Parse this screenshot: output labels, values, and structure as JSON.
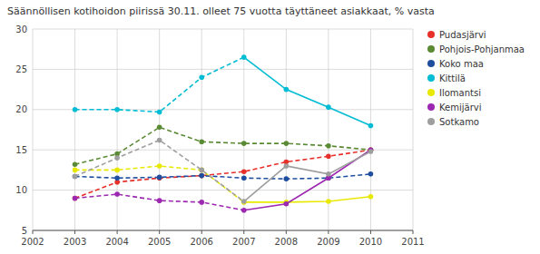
{
  "chart_data": {
    "type": "line",
    "title": "Säännöllisen kotihoidon piirissä 30.11. olleet 75 vuotta täyttäneet asiakkaat, % vasta",
    "x": [
      2003,
      2004,
      2005,
      2006,
      2007,
      2008,
      2009,
      2010
    ],
    "series": [
      {
        "name": "Pudasjärvi",
        "color": "#e8302a",
        "line_style": "dashed",
        "marker": "circle",
        "values": [
          9.0,
          11.0,
          11.5,
          11.8,
          12.3,
          13.5,
          14.2,
          15.0
        ]
      },
      {
        "name": "Pohjois-Pohjanmaa",
        "color": "#5a8a34",
        "line_style": "dashed",
        "marker": "circle",
        "values": [
          13.2,
          14.5,
          17.8,
          16.0,
          15.8,
          15.8,
          15.5,
          15.0
        ]
      },
      {
        "name": "Koko maa",
        "color": "#1f4e9e",
        "line_style": "dashed",
        "marker": "circle",
        "values": [
          11.7,
          11.5,
          11.6,
          11.8,
          11.5,
          11.4,
          11.5,
          12.0
        ]
      },
      {
        "name": "Kittilä",
        "color": "#00bcd4",
        "line_style": "dashed-solid",
        "split": 2007,
        "marker": "circle",
        "values": [
          20.0,
          20.0,
          19.7,
          24.0,
          26.5,
          22.5,
          20.3,
          18.0
        ]
      },
      {
        "name": "Ilomantsi",
        "color": "#e8e800",
        "line_style": "dashed-solid",
        "split": 2007,
        "marker": "circle",
        "values": [
          12.5,
          12.5,
          13.0,
          12.5,
          8.5,
          8.5,
          8.6,
          9.2
        ]
      },
      {
        "name": "Kemijärvi",
        "color": "#9c27b0",
        "line_style": "dashed-solid",
        "split": 2007,
        "marker": "circle",
        "values": [
          9.0,
          9.5,
          8.7,
          8.5,
          7.5,
          8.3,
          11.5,
          15.0
        ]
      },
      {
        "name": "Sotkamo",
        "color": "#9e9e9e",
        "line_style": "dashed-solid",
        "split": 2007,
        "marker": "circle",
        "values": [
          11.7,
          14.0,
          16.2,
          12.5,
          8.6,
          13.0,
          12.0,
          14.8
        ]
      }
    ],
    "xlim": [
      2002,
      2011
    ],
    "ylim": [
      5,
      30
    ],
    "xticks": [
      2002,
      2003,
      2004,
      2005,
      2006,
      2007,
      2008,
      2009,
      2010,
      2011
    ],
    "yticks": [
      5,
      10,
      15,
      20,
      25,
      30
    ],
    "grid": true,
    "legend": "right"
  }
}
